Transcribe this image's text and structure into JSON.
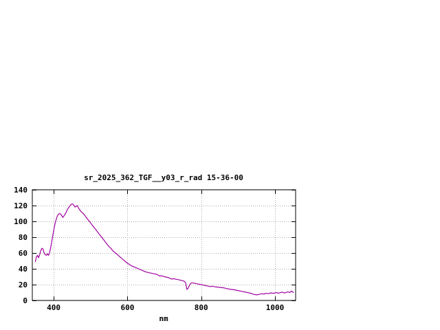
{
  "page": {
    "background": "#ffffff"
  },
  "chart_data": {
    "type": "line",
    "title": "sr_2025_362_TGF__y03_r_rad 15-36-00",
    "xlabel": "nm",
    "ylabel": "",
    "xlim": [
      342,
      1056
    ],
    "ylim": [
      0,
      140
    ],
    "x_ticks": [
      400,
      600,
      800,
      1000
    ],
    "y_ticks": [
      0,
      20,
      40,
      60,
      80,
      100,
      120,
      140
    ],
    "grid": true,
    "legend": "none",
    "line_color": "#a000a0",
    "axis_color": "#000000",
    "grid_color": "#a8a8a8",
    "series": [
      {
        "name": "sr_2025_362_TGF__y03_r_rad",
        "x": [
          350,
          353,
          356,
          359,
          362,
          365,
          368,
          371,
          374,
          377,
          380,
          383,
          386,
          389,
          392,
          395,
          398,
          401,
          404,
          407,
          410,
          413,
          416,
          419,
          422,
          425,
          428,
          431,
          434,
          437,
          440,
          443,
          446,
          449,
          452,
          455,
          458,
          461,
          464,
          467,
          470,
          475,
          480,
          485,
          490,
          495,
          500,
          505,
          510,
          515,
          520,
          525,
          530,
          535,
          540,
          545,
          550,
          555,
          560,
          565,
          570,
          575,
          580,
          585,
          590,
          595,
          600,
          610,
          620,
          630,
          640,
          650,
          660,
          670,
          680,
          687,
          695,
          700,
          710,
          715,
          720,
          725,
          730,
          740,
          750,
          755,
          758,
          761,
          764,
          768,
          772,
          776,
          780,
          790,
          800,
          810,
          820,
          825,
          830,
          840,
          850,
          860,
          870,
          880,
          890,
          900,
          910,
          915,
          920,
          925,
          930,
          935,
          940,
          945,
          950,
          955,
          960,
          965,
          970,
          975,
          980,
          985,
          990,
          995,
          1000,
          1005,
          1010,
          1015,
          1020,
          1025,
          1030,
          1035,
          1040,
          1045,
          1050
        ],
        "y": [
          49,
          55,
          57,
          54,
          58,
          63,
          66,
          65,
          60,
          58,
          57,
          59,
          57,
          61,
          67,
          75,
          83,
          91,
          98,
          103,
          107,
          109,
          110,
          109,
          107,
          105,
          107,
          109,
          112,
          115,
          117,
          119,
          121,
          122,
          122,
          120,
          118,
          119,
          120,
          117,
          115,
          112,
          110,
          107,
          104,
          101,
          98,
          95,
          92,
          89,
          86,
          83,
          80,
          77,
          74,
          71,
          68,
          66,
          63,
          61,
          59,
          57,
          55,
          53,
          51,
          49,
          47,
          44,
          42,
          40,
          38,
          36,
          35,
          34,
          33,
          31,
          31,
          30,
          29,
          28,
          27,
          27.5,
          27,
          26,
          25,
          24,
          22,
          14,
          15,
          19,
          22,
          22,
          22,
          21,
          20,
          19,
          18,
          17.5,
          18,
          17,
          16.5,
          16,
          15,
          14,
          13.5,
          12.5,
          11.5,
          11,
          10.5,
          10,
          9.5,
          9,
          8,
          7.5,
          7,
          7.5,
          8,
          8.5,
          8,
          9,
          8.5,
          9,
          9.5,
          9,
          9.5,
          10,
          9,
          10,
          10.5,
          9.5,
          10,
          11,
          10,
          12,
          10
        ]
      }
    ]
  }
}
